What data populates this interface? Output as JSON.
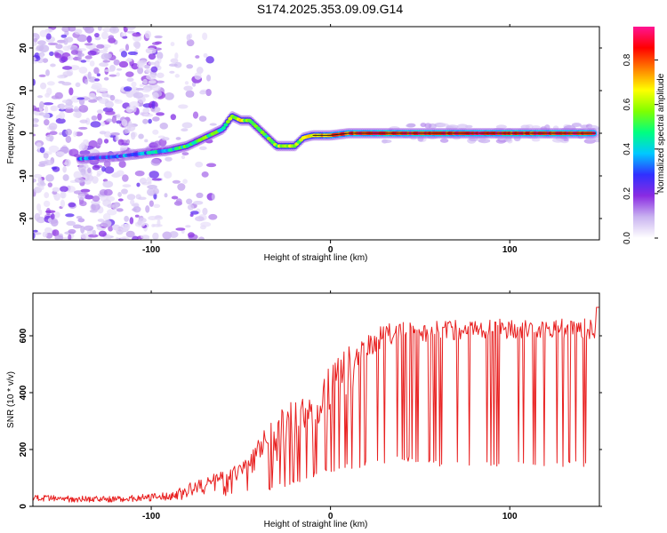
{
  "title": "S174.2025.353.09.09.G14",
  "chart_data": [
    {
      "type": "heatmap",
      "name": "spectrogram",
      "xlabel": "Height of straight line (km)",
      "ylabel": "Frequency (Hz)",
      "xlim": [
        -166,
        150
      ],
      "ylim": [
        -25,
        25
      ],
      "xticks": [
        -100,
        0,
        100
      ],
      "xtick_labels": [
        "-100",
        "0",
        "100"
      ],
      "yticks": [
        -20,
        -10,
        0,
        10,
        20
      ],
      "ytick_labels": [
        "-20",
        "-10",
        "0",
        "10",
        "20"
      ],
      "colorbar": {
        "label": "Normalized spectral amplitude",
        "range": [
          0.0,
          0.95
        ],
        "ticks": [
          0.0,
          0.2,
          0.4,
          0.6,
          0.8
        ],
        "tick_labels": [
          "0.0",
          "0.2",
          "0.4",
          "0.6",
          "0.8"
        ],
        "colormap": [
          "#ffffff",
          "#c9b3f0",
          "#8a2be2",
          "#3030ff",
          "#00c8ff",
          "#00ff80",
          "#80ff00",
          "#ffff00",
          "#ff8000",
          "#ff0000",
          "#ff1493"
        ]
      },
      "ridge": {
        "x": [
          -140,
          -120,
          -100,
          -90,
          -80,
          -70,
          -60,
          -55,
          -50,
          -45,
          -40,
          -35,
          -30,
          -25,
          -20,
          -15,
          -10,
          -5,
          0,
          10,
          20,
          40,
          60,
          80,
          100,
          120,
          148
        ],
        "y": [
          -6,
          -5.5,
          -4.5,
          -4,
          -3,
          -1,
          1,
          4,
          3,
          3,
          1,
          -1,
          -3,
          -3,
          -3,
          -1,
          -0.5,
          -0.5,
          -0.5,
          0,
          0,
          0,
          0,
          0,
          0,
          0,
          0
        ],
        "amplitude": [
          0.35,
          0.3,
          0.4,
          0.45,
          0.5,
          0.55,
          0.5,
          0.6,
          0.7,
          0.55,
          0.5,
          0.55,
          0.6,
          0.65,
          0.6,
          0.65,
          0.7,
          0.75,
          0.8,
          0.85,
          0.9,
          0.9,
          0.9,
          0.9,
          0.9,
          0.9,
          0.9
        ]
      },
      "noise_region_x": [
        -166,
        -80
      ]
    },
    {
      "type": "line",
      "name": "snr",
      "xlabel": "Height of straight line (km)",
      "ylabel": "SNR (10 * v/v)",
      "xlim": [
        -166,
        150
      ],
      "ylim": [
        0,
        750
      ],
      "xticks": [
        -100,
        0,
        100
      ],
      "xtick_labels": [
        "-100",
        "0",
        "100"
      ],
      "yticks": [
        0,
        200,
        400,
        600
      ],
      "ytick_labels": [
        "0",
        "200",
        "400",
        "600"
      ],
      "color": "#e82020",
      "envelope": {
        "x": [
          -166,
          -120,
          -90,
          -80,
          -70,
          -60,
          -50,
          -40,
          -30,
          -20,
          -10,
          0,
          10,
          15,
          20,
          30,
          40,
          60,
          80,
          100,
          120,
          150
        ],
        "upper": [
          40,
          35,
          50,
          80,
          110,
          130,
          160,
          250,
          330,
          380,
          430,
          500,
          560,
          590,
          620,
          640,
          650,
          660,
          660,
          660,
          660,
          660
        ],
        "lower": [
          15,
          15,
          20,
          25,
          40,
          60,
          100,
          130,
          150,
          190,
          260,
          320,
          380,
          450,
          520,
          560,
          580,
          580,
          590,
          590,
          590,
          590
        ],
        "dips_to": [
          10,
          10,
          10,
          15,
          20,
          30,
          40,
          50,
          60,
          80,
          100,
          120,
          130,
          130,
          140,
          150,
          160,
          140,
          140,
          140,
          140,
          140
        ]
      }
    }
  ]
}
